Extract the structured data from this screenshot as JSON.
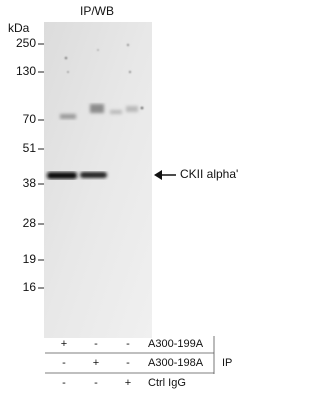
{
  "title": "IP/WB",
  "unit": "kDa",
  "markers": [
    "250",
    "130",
    "70",
    "51",
    "38",
    "28",
    "19",
    "16"
  ],
  "band_label": "CKII alpha'",
  "table": {
    "rows": [
      {
        "cells": [
          "+",
          "-",
          "-"
        ],
        "label": "A300-199A"
      },
      {
        "cells": [
          "-",
          "+",
          "-"
        ],
        "label": "A300-198A"
      },
      {
        "cells": [
          "-",
          "-",
          "+"
        ],
        "label": "Ctrl IgG"
      }
    ],
    "group_label": "IP"
  }
}
